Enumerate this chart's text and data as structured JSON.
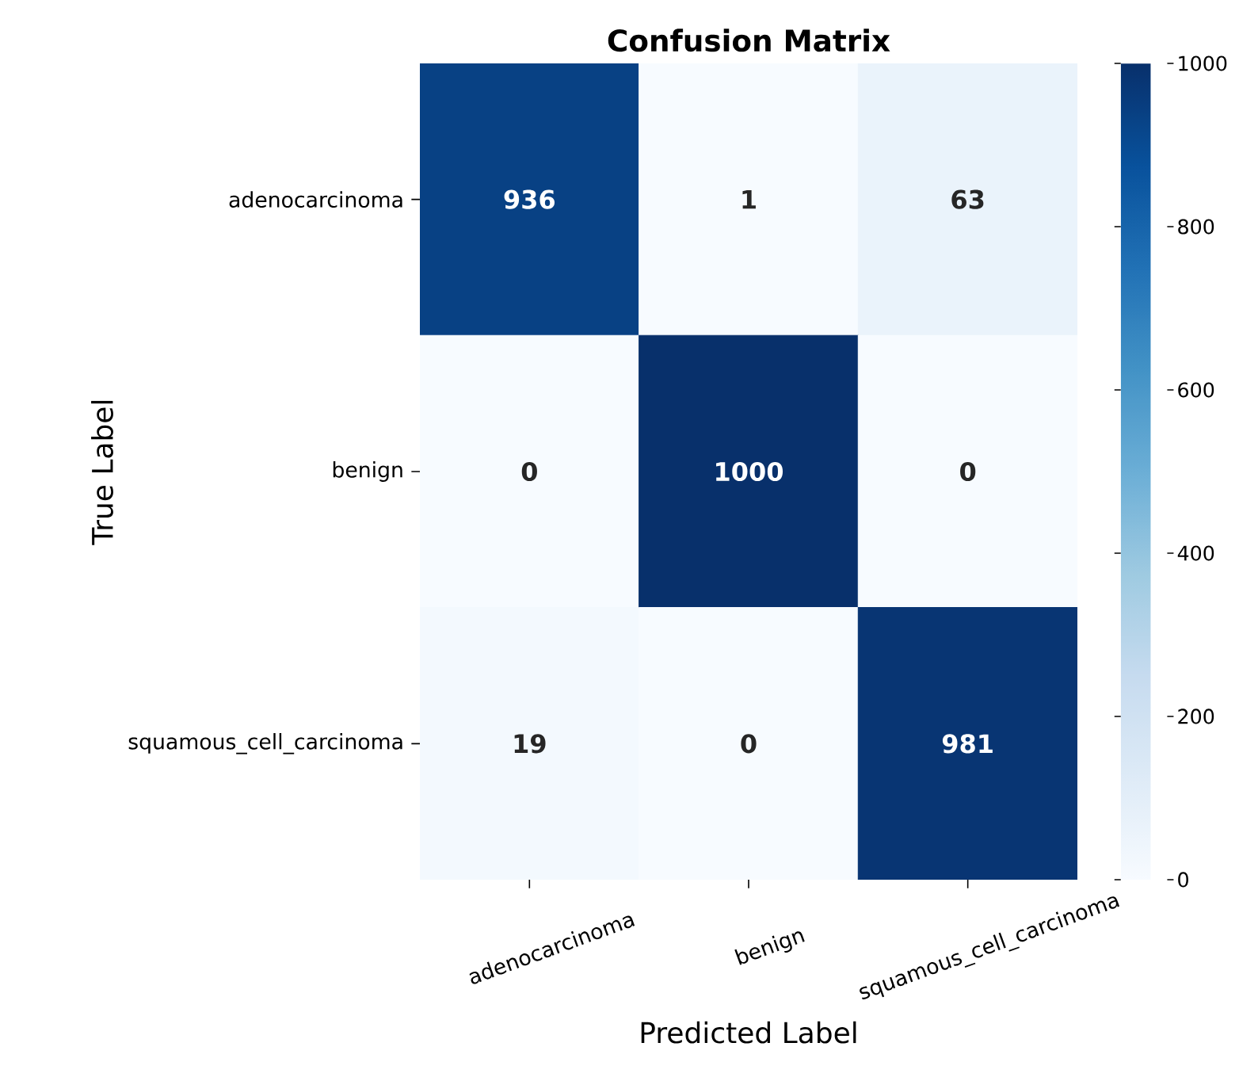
{
  "chart_data": {
    "type": "heatmap",
    "title": "Confusion Matrix",
    "xlabel": "Predicted Label",
    "ylabel": "True Label",
    "categories": [
      "adenocarcinoma",
      "benign",
      "squamous_cell_carcinoma"
    ],
    "y_categories": [
      "adenocarcinoma",
      "benign",
      "squamous_cell_carcinoma"
    ],
    "cells": [
      [
        936,
        1,
        63
      ],
      [
        0,
        1000,
        0
      ],
      [
        19,
        0,
        981
      ]
    ],
    "clim": [
      0,
      1000
    ],
    "cticks": [
      0,
      200,
      400,
      600,
      800,
      1000
    ],
    "data_labels": true
  }
}
